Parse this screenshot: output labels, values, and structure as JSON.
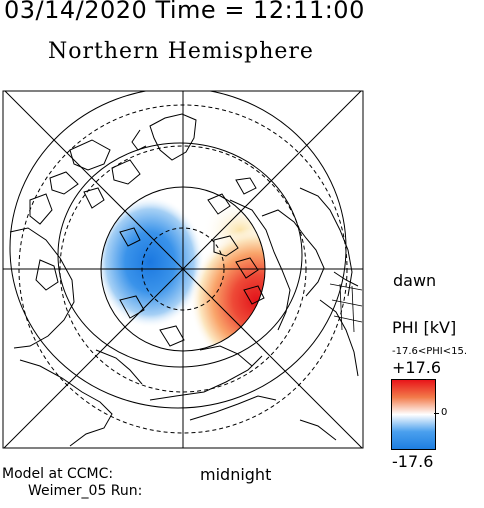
{
  "header": {
    "time_line": "03/14/2020 Time = 12:11:00",
    "hemisphere": "Northern Hemisphere"
  },
  "map": {
    "projection": "polar",
    "center": "north pole",
    "dawn_label": "dawn",
    "midnight_label": "midnight"
  },
  "colorbar": {
    "title": "PHI [kV]",
    "range_text": "-17.6<PHI<15.",
    "max_label": "+17.6",
    "mid_label": "0",
    "min_label": "-17.6",
    "colors": {
      "max": "#e8151a",
      "mid": "#ffffff",
      "min": "#1e7ee0"
    }
  },
  "footer": {
    "model_label": "Model at CCMC:",
    "run_label": "Weimer_05 Run:"
  }
}
